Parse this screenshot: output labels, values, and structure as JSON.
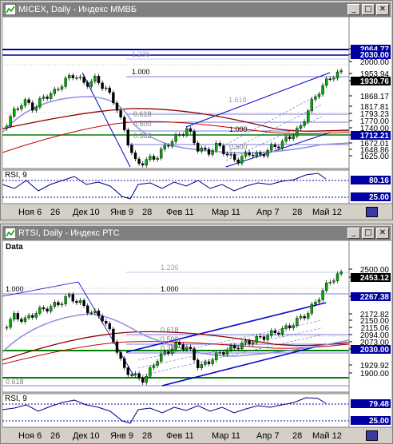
{
  "window1": {
    "title": "MICEX, Daily - Индекс ММВБ",
    "fib_labels": {
      "f1236": "1.236",
      "f1000": "1.000",
      "f1618": "1.618",
      "f0618": "0.618",
      "f0500": "0.500",
      "f0382": "0.382",
      "f0500b": "0.500",
      "f1000b": "1.000"
    },
    "price_axis": [
      "2064.77",
      "2030.00",
      "2000.00",
      "1953.94",
      "1930.76",
      "1868.17",
      "1817.81",
      "1793.23",
      "1770.00",
      "1740.00",
      "1712.21",
      "1672.01",
      "1648.86",
      "1625.00"
    ],
    "rsi_label": "RSI, 9",
    "rsi_axis": [
      "80.16",
      "25.00"
    ],
    "x_labels": [
      "Ноя 6",
      "26",
      "Дек 10",
      "Янв 9",
      "28",
      "Фев 11",
      "Мар 11",
      "Апр 7",
      "28",
      "Май 12"
    ]
  },
  "window2": {
    "title": "RTSI, Daily - Индекс РТС",
    "data_label": "Data",
    "fib_labels": {
      "f1236": "1.236",
      "f1000": "1.000",
      "f1000b": "1.000",
      "f0618": "0.618",
      "f0500": "0.500",
      "f0382": "0.382",
      "f0618b": "0.618"
    },
    "price_axis": [
      "2500.00",
      "2453.12",
      "2267.38",
      "2172.82",
      "2150.00",
      "2115.06",
      "2094.00",
      "2073.00",
      "2030.00",
      "1929.92",
      "1900.00"
    ],
    "rsi_label": "RSI, 9",
    "rsi_axis": [
      "79.48",
      "25.00"
    ],
    "x_labels": [
      "Ноя 6",
      "26",
      "Дек 10",
      "Янв 9",
      "28",
      "Фев 11",
      "Мар 11",
      "Апр 7",
      "28",
      "Май 12"
    ]
  },
  "colors": {
    "accent": "#0000cc",
    "up": "#00aa00",
    "down": "#000000",
    "ma_dark": "#8b0000",
    "ma_light": "#9090e0",
    "level_green": "#008000"
  }
}
